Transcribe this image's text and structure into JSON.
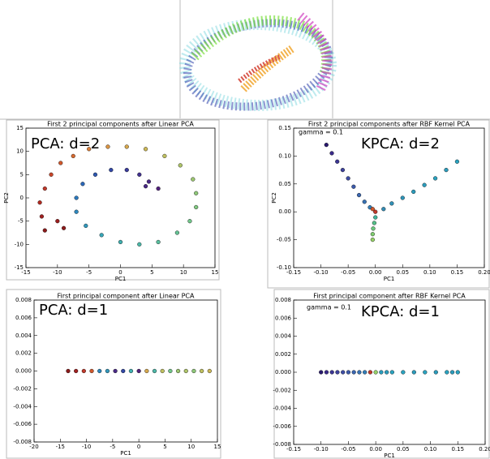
{
  "chart_data": [
    {
      "type": "scatter",
      "title": "First 2 principal components after Linear PCA",
      "annotations": [
        "PCA: d=2"
      ],
      "xlabel": "PC1",
      "ylabel": "PC2",
      "xlim": [
        -15,
        15
      ],
      "xticks": [
        -15,
        -10,
        -5,
        0,
        5,
        10,
        15
      ],
      "ylim": [
        -15,
        15
      ],
      "yticks": [
        -15,
        -10,
        -5,
        0,
        5,
        10,
        15
      ],
      "x": [
        -12,
        -12.5,
        -12.8,
        -12,
        -11,
        -9.5,
        -7.5,
        -5,
        -2,
        1,
        4,
        7,
        9.5,
        11.5,
        12,
        12,
        11,
        9,
        6,
        3,
        0,
        -3,
        -5.5,
        -7,
        -7,
        -6,
        -4,
        -1.5,
        1,
        3,
        4.5,
        6,
        4,
        -10,
        -9
      ],
      "y": [
        -7,
        -4,
        -1,
        2,
        5,
        7.5,
        9,
        10.5,
        11,
        11,
        10.5,
        9,
        7,
        4,
        1,
        -2,
        -5,
        -7.5,
        -9.5,
        -10,
        -9.5,
        -8,
        -6,
        -3,
        0,
        3,
        5,
        6,
        6,
        5,
        3.5,
        2,
        2.5,
        -5,
        -6.5
      ],
      "colors": [
        "#8b1a1a",
        "#a02020",
        "#b22a20",
        "#c0392b",
        "#c8462a",
        "#d0582c",
        "#d66a30",
        "#da7e38",
        "#d99444",
        "#d6a84e",
        "#ccb858",
        "#bfc060",
        "#aec468",
        "#9cc670",
        "#8ec878",
        "#80c880",
        "#72c68a",
        "#64c294",
        "#58be9e",
        "#4cb8a8",
        "#40b0b0",
        "#38a6b8",
        "#3298bc",
        "#2e88be",
        "#2c78bc",
        "#2c68b8",
        "#2e58b0",
        "#3248a6",
        "#3a3c9c",
        "#423290",
        "#4a2a86",
        "#52227c",
        "#4a2a86",
        "#9a1e1e",
        "#8e1c1c"
      ]
    },
    {
      "type": "scatter",
      "title": "First 2 principal components after RBF Kernel PCA",
      "annotations": [
        "gamma = 0.1",
        "KPCA: d=2"
      ],
      "xlabel": "PC1",
      "ylabel": "PC2",
      "xlim": [
        -0.15,
        0.2
      ],
      "xticks": [
        -0.15,
        {
          "value": -0.1,
          "label": "-0.10"
        },
        -0.05,
        {
          "value": 0,
          "label": "0.00"
        },
        0.05,
        {
          "value": 0.1,
          "label": "0.10"
        },
        0.15,
        {
          "value": 0.2,
          "label": "0.20"
        }
      ],
      "ylim": [
        -0.1,
        0.15
      ],
      "yticks": [
        {
          "value": -0.1,
          "label": "-0.10"
        },
        -0.05,
        {
          "value": 0,
          "label": "0.00"
        },
        0.05,
        {
          "value": 0.1,
          "label": "0.10"
        },
        0.15
      ],
      "x": [
        -0.09,
        -0.08,
        -0.07,
        -0.06,
        -0.05,
        -0.04,
        -0.03,
        -0.02,
        -0.01,
        0.15,
        0.13,
        0.11,
        0.09,
        0.07,
        0.05,
        0.03,
        0.015,
        0,
        -0.005,
        0,
        -0.002,
        -0.004,
        -0.005,
        -0.005
      ],
      "y": [
        0.12,
        0.105,
        0.09,
        0.075,
        0.06,
        0.045,
        0.03,
        0.018,
        0.008,
        0.09,
        0.075,
        0.06,
        0.048,
        0.036,
        0.025,
        0.015,
        0.005,
        0,
        0.005,
        -0.01,
        -0.02,
        -0.03,
        -0.04,
        -0.05
      ],
      "colors": [
        "#2a1a6e",
        "#3a2a8a",
        "#3c3694",
        "#3e429c",
        "#3e4ea4",
        "#3c5aaa",
        "#3a66b0",
        "#3872b4",
        "#347eb8",
        "#2aa3c0",
        "#2c9cbc",
        "#2aa3c0",
        "#2c9cbc",
        "#2c9cbc",
        "#2e94b8",
        "#3090b6",
        "#348cb4",
        "#c0392b",
        "#d0582c",
        "#3fb59a",
        "#55c08a",
        "#6ac87c",
        "#80cc70",
        "#96d068"
      ]
    },
    {
      "type": "scatter",
      "title": "First principal component after Linear PCA",
      "annotations": [
        "PCA: d=1"
      ],
      "xlabel": "PC1",
      "xlim": [
        -20,
        15
      ],
      "xticks": [
        -20,
        -15,
        -10,
        -5,
        0,
        5,
        10,
        15
      ],
      "ylim": [
        -0.008,
        0.008
      ],
      "yticks": [
        -0.008,
        -0.006,
        -0.004,
        -0.002,
        {
          "value": 0,
          "label": "0.000"
        },
        0.002,
        0.004,
        0.006,
        0.008
      ],
      "x": [
        -13.5,
        -12,
        -10.5,
        -9,
        -7.5,
        -6,
        -4.5,
        -3,
        -1.5,
        0,
        1.5,
        3,
        4.5,
        6,
        7.5,
        9,
        10.5,
        12,
        13.5
      ],
      "y": [
        0,
        0,
        0,
        0,
        0,
        0,
        0,
        0,
        0,
        0,
        0,
        0,
        0,
        0,
        0,
        0,
        0,
        0,
        0
      ],
      "colors": [
        "#8b1a1a",
        "#a02020",
        "#c0392b",
        "#d0582c",
        "#2e88be",
        "#3298bc",
        "#4a2a86",
        "#3248a6",
        "#40b0b0",
        "#52227c",
        "#d6a84e",
        "#4cb8a8",
        "#bfc060",
        "#72c68a",
        "#9cc670",
        "#aec468",
        "#8ec878",
        "#bfc060",
        "#ccb858"
      ]
    },
    {
      "type": "scatter",
      "title": "First principal component after RBF Kernel PCA",
      "annotations": [
        "gamma = 0.1",
        "KPCA: d=1"
      ],
      "xlabel": "PC1",
      "xlim": [
        -0.15,
        0.2
      ],
      "xticks": [
        -0.15,
        {
          "value": -0.1,
          "label": "-0.10"
        },
        -0.05,
        {
          "value": 0,
          "label": "0.00"
        },
        0.05,
        {
          "value": 0.1,
          "label": "0.10"
        },
        0.15,
        {
          "value": 0.2,
          "label": "0.20"
        }
      ],
      "ylim": [
        -0.008,
        0.008
      ],
      "yticks": [
        -0.008,
        -0.006,
        -0.004,
        -0.002,
        {
          "value": 0,
          "label": "0.000"
        },
        0.002,
        0.004,
        0.006,
        0.008
      ],
      "x": [
        -0.1,
        -0.09,
        -0.08,
        -0.07,
        -0.06,
        -0.05,
        -0.04,
        -0.03,
        -0.02,
        -0.01,
        0,
        0.01,
        0.02,
        0.03,
        0.05,
        0.07,
        0.09,
        0.11,
        0.13,
        0.14,
        0.15
      ],
      "y": [
        0,
        0,
        0,
        0,
        0,
        0,
        0,
        0,
        0,
        0,
        0,
        0,
        0,
        0,
        0,
        0,
        0,
        0,
        0,
        0,
        0
      ],
      "colors": [
        "#2a1a6e",
        "#3a2a8a",
        "#3c3694",
        "#3e429c",
        "#3e4ea4",
        "#3c5aaa",
        "#3a66b0",
        "#3872b4",
        "#347eb8",
        "#c0392b",
        "#96d068",
        "#2c9cbc",
        "#2c9cbc",
        "#2aa3c0",
        "#2aa3c0",
        "#2c9cbc",
        "#2aa3c0",
        "#2c9cbc",
        "#2aa3c0",
        "#2c9cbc",
        "#2aa3c0"
      ]
    }
  ]
}
